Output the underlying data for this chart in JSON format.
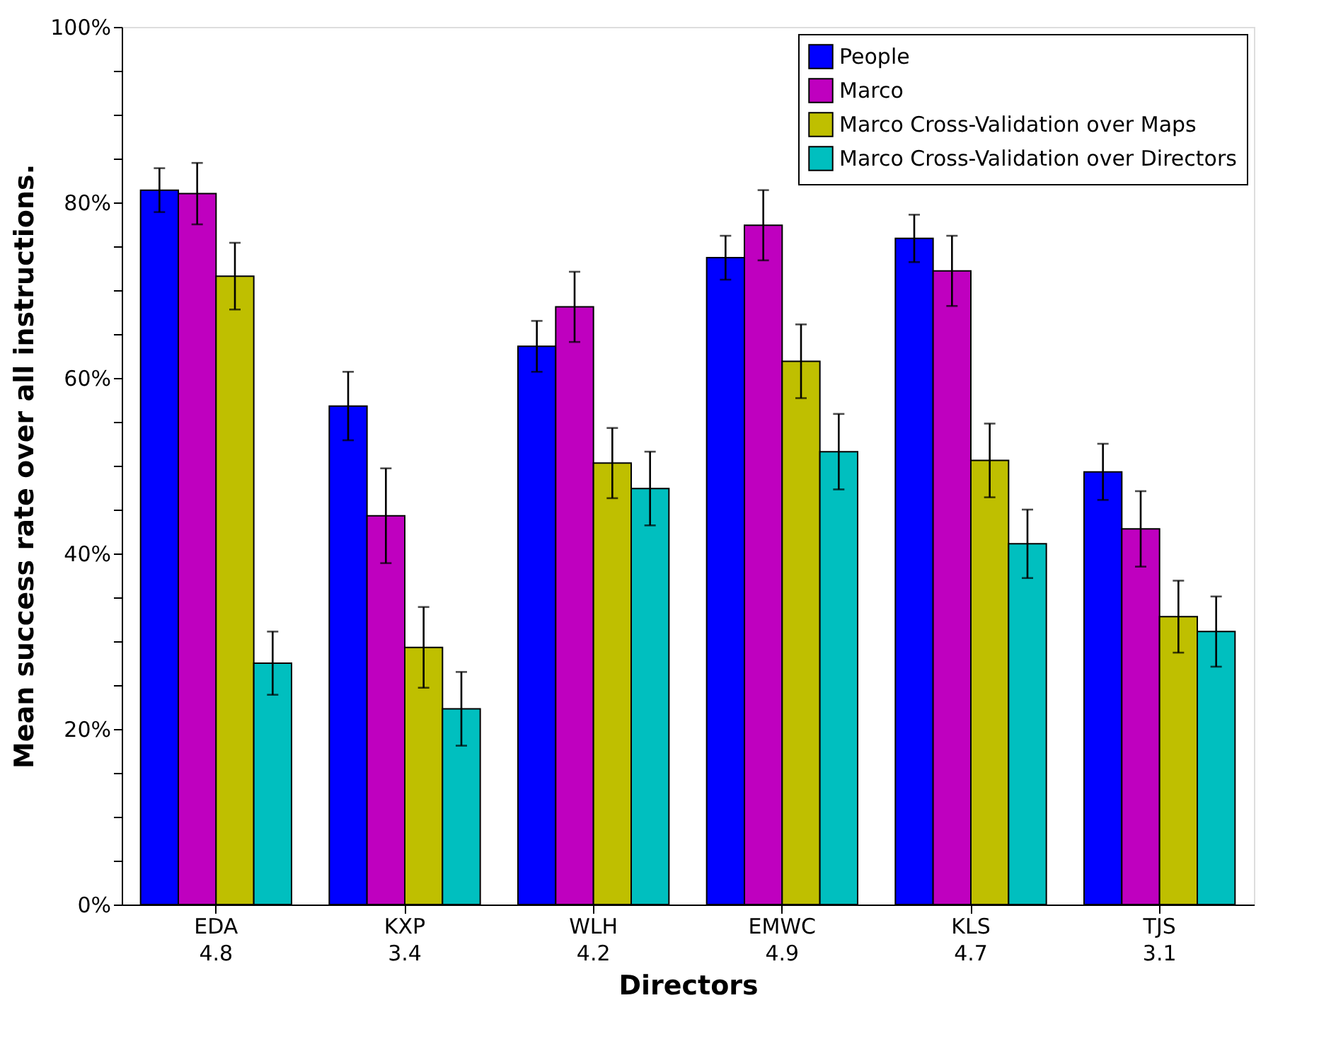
{
  "chart_data": {
    "type": "bar",
    "xlabel": "Directors",
    "ylabel": "Mean success rate over all instructions.",
    "categories": [
      "EDA\n4.8",
      "KXP\n3.4",
      "WLH\n4.2",
      "EMWC\n4.9",
      "KLS\n4.7",
      "TJS\n3.1"
    ],
    "series": [
      {
        "name": "People",
        "color": "#0000ff",
        "values": [
          81.4,
          56.8,
          63.6,
          73.7,
          75.9,
          49.3
        ],
        "errors": [
          2.5,
          3.9,
          2.9,
          2.5,
          2.7,
          3.2
        ]
      },
      {
        "name": "Marco",
        "color": "#bf00bf",
        "values": [
          81.0,
          44.3,
          68.1,
          77.4,
          72.2,
          42.8
        ],
        "errors": [
          3.5,
          5.4,
          4.0,
          4.0,
          4.0,
          4.3
        ]
      },
      {
        "name": "Marco Cross-Validation over Maps",
        "color": "#bfbf00",
        "values": [
          71.6,
          29.3,
          50.3,
          61.9,
          50.6,
          32.8
        ],
        "errors": [
          3.8,
          4.6,
          4.0,
          4.2,
          4.2,
          4.1
        ]
      },
      {
        "name": "Marco Cross-Validation over Directors",
        "color": "#00bfbf",
        "values": [
          27.5,
          22.3,
          47.4,
          51.6,
          41.1,
          31.1
        ],
        "errors": [
          3.6,
          4.2,
          4.2,
          4.3,
          3.9,
          4.0
        ]
      }
    ],
    "ylim": [
      0,
      100
    ],
    "yticks": [
      {
        "value": 0,
        "label": "0%"
      },
      {
        "value": 5,
        "label": null
      },
      {
        "value": 10,
        "label": null
      },
      {
        "value": 15,
        "label": null
      },
      {
        "value": 20,
        "label": "20%"
      },
      {
        "value": 25,
        "label": null
      },
      {
        "value": 30,
        "label": null
      },
      {
        "value": 35,
        "label": null
      },
      {
        "value": 40,
        "label": "40%"
      },
      {
        "value": 45,
        "label": null
      },
      {
        "value": 50,
        "label": null
      },
      {
        "value": 55,
        "label": null
      },
      {
        "value": 60,
        "label": "60%"
      },
      {
        "value": 65,
        "label": null
      },
      {
        "value": 70,
        "label": null
      },
      {
        "value": 75,
        "label": null
      },
      {
        "value": 80,
        "label": "80%"
      },
      {
        "value": 85,
        "label": null
      },
      {
        "value": 90,
        "label": null
      },
      {
        "value": 95,
        "label": null
      },
      {
        "value": 100,
        "label": "100%"
      }
    ],
    "grid": false,
    "legend": "top right"
  }
}
